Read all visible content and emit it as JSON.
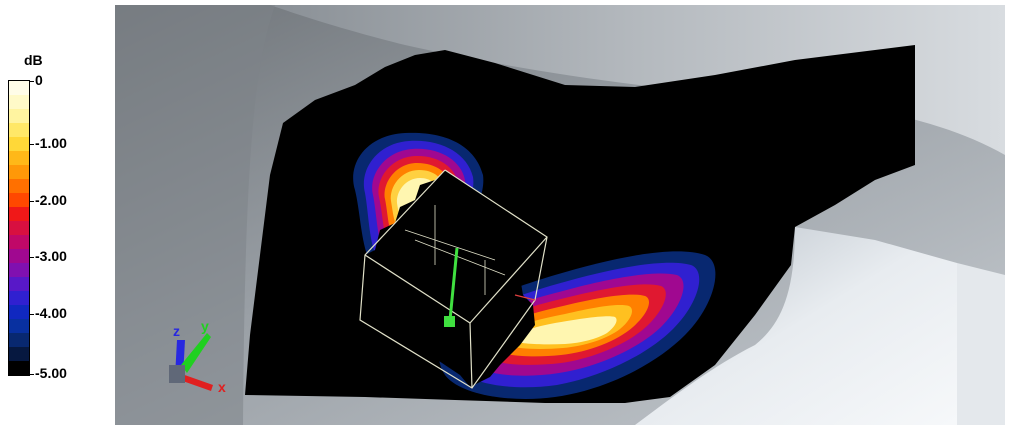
{
  "legend": {
    "unit": "dB",
    "ticks": [
      "0",
      "-1.00",
      "-2.00",
      "-3.00",
      "-4.00",
      "-5.00"
    ],
    "range": [
      -5.0,
      0
    ],
    "colors": [
      "#fffde8",
      "#fffac8",
      "#fff4a0",
      "#ffe868",
      "#ffd838",
      "#ffb818",
      "#ff9808",
      "#ff7000",
      "#ff4800",
      "#f01818",
      "#d81040",
      "#c00868",
      "#a00890",
      "#8010b0",
      "#5818c8",
      "#3020d0",
      "#1028c0",
      "#0830a0",
      "#082870",
      "#061840",
      "#000000"
    ]
  },
  "viewport": {
    "axes": {
      "x": "x",
      "y": "y",
      "z": "z"
    },
    "colors": {
      "axis_x": "#e02020",
      "axis_y": "#20d020",
      "axis_z": "#2828e0",
      "probe_line": "#40e040",
      "wireframe": "#e0e0c8"
    }
  }
}
